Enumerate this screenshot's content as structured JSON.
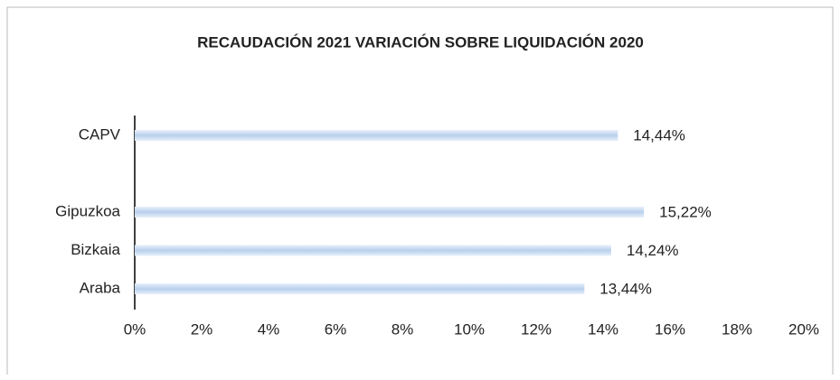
{
  "chart_data": {
    "type": "bar",
    "orientation": "horizontal",
    "title": "RECAUDACIÓN 2021 VARIACIÓN SOBRE LIQUIDACIÓN 2020",
    "categories": [
      "CAPV",
      null,
      "Gipuzkoa",
      "Bizkaia",
      "Araba"
    ],
    "values": [
      14.44,
      null,
      15.22,
      14.24,
      13.44
    ],
    "value_labels": [
      "14,44%",
      null,
      "15,22%",
      "14,24%",
      "13,44%"
    ],
    "color": "#b8d0ec",
    "xlim": [
      0,
      20
    ],
    "xticks": [
      {
        "value": 0,
        "label": "0%"
      },
      {
        "value": 2,
        "label": "2%"
      },
      {
        "value": 4,
        "label": "4%"
      },
      {
        "value": 6,
        "label": "6%"
      },
      {
        "value": 8,
        "label": "8%"
      },
      {
        "value": 10,
        "label": "10%"
      },
      {
        "value": 12,
        "label": "12%"
      },
      {
        "value": 14,
        "label": "14%"
      },
      {
        "value": 16,
        "label": "16%"
      },
      {
        "value": 18,
        "label": "18%"
      },
      {
        "value": 20,
        "label": "20%"
      }
    ],
    "grid": false
  }
}
